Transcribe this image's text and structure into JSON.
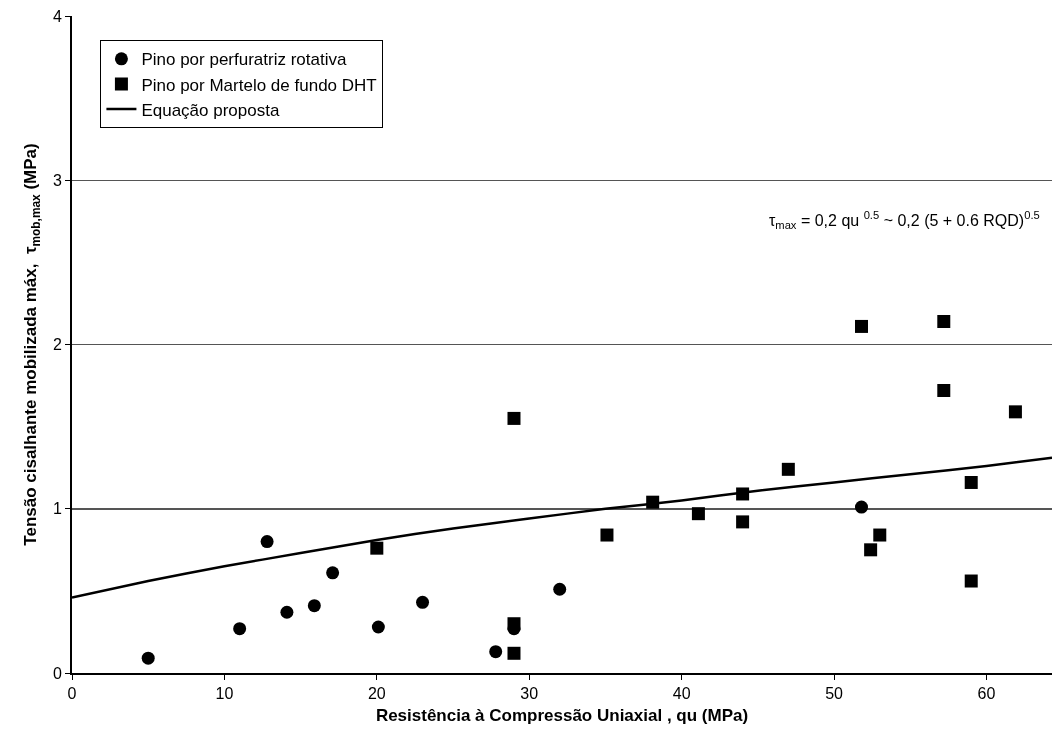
{
  "chart_data": {
    "type": "scatter",
    "xlabel": "Resistência à Compressão Uniaxial , qu (MPa)",
    "ylabel": "Tensão cisalhante mobilizada máx,  τ$_{mob,max}$ (MPa)",
    "xlim": [
      0,
      64.3
    ],
    "xticks": [
      0,
      10,
      20,
      30,
      40,
      50,
      60
    ],
    "ylim": [
      0,
      4
    ],
    "yticks": [
      0,
      1,
      2,
      3,
      4
    ],
    "grid": "y",
    "legend": "top left",
    "annotations": [
      "τ$_{max}$ = 0,2 qu $^{0.5}$ ~ 0,2 (5 + 0.6 RQD)$^{0.5}$"
    ],
    "series": [
      {
        "name": "Pino por perfuratriz rotativa",
        "marker": "circle",
        "color": "#000000",
        "x": [
          5,
          11,
          12.8,
          14.1,
          15.9,
          17.1,
          20.1,
          23,
          27.8,
          29,
          32,
          51.8
        ],
        "values": [
          0.09,
          0.27,
          0.8,
          0.37,
          0.41,
          0.61,
          0.28,
          0.43,
          0.13,
          0.27,
          0.51,
          1.01
        ]
      },
      {
        "name": "Pino por Martelo de fundo DHT",
        "marker": "square",
        "color": "#000000",
        "x": [
          20,
          29,
          29,
          29,
          35.1,
          38.1,
          41.1,
          44,
          44,
          47,
          51.8,
          52.4,
          53,
          57.2,
          57.2,
          61.9,
          59,
          59
        ],
        "values": [
          0.76,
          0.3,
          0.12,
          1.55,
          0.84,
          1.04,
          0.97,
          1.09,
          0.92,
          1.24,
          2.11,
          0.75,
          0.84,
          2.14,
          1.72,
          1.59,
          1.16,
          0.56
        ]
      },
      {
        "name": "Equação proposta",
        "type": "line",
        "marker": "none",
        "line_style": "solid",
        "color": "#000000",
        "x": [
          0,
          5,
          10,
          15,
          20,
          25,
          30,
          35,
          40,
          45,
          50,
          55,
          60,
          64.3
        ],
        "values": [
          0.46,
          0.56,
          0.65,
          0.73,
          0.81,
          0.88,
          0.94,
          1.0,
          1.05,
          1.11,
          1.16,
          1.21,
          1.26,
          1.31
        ]
      }
    ]
  }
}
